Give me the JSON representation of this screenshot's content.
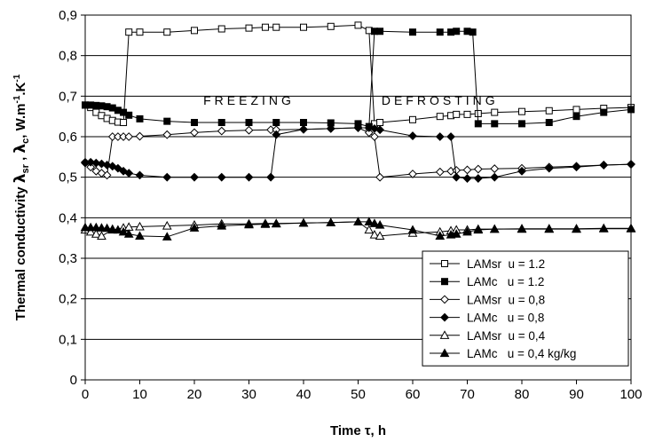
{
  "chart_data": {
    "type": "line",
    "title": "",
    "xlabel": "Time τ, h",
    "ylabel": "Thermal conductivity λsr , λc, W.m-1.K-1",
    "ylabel_parts": {
      "main": "Thermal conductivity ",
      "lambda1": "λ",
      "sub1": "sr",
      "sep": " , ",
      "lambda2": "λ",
      "sub2": "c",
      "unit_a": ", W.m",
      "sup1": "-1",
      "unit_b": ".K",
      "sup2": "-1"
    },
    "xlim": [
      0,
      100
    ],
    "ylim": [
      0,
      0.9
    ],
    "xticks": [
      0,
      10,
      20,
      30,
      40,
      50,
      60,
      70,
      80,
      90,
      100
    ],
    "yticks": [
      0,
      0.1,
      0.2,
      0.3,
      0.4,
      0.5,
      0.6,
      0.7,
      0.8,
      0.9
    ],
    "ytick_labels": [
      "0",
      "0,1",
      "0,2",
      "0,3",
      "0,4",
      "0,5",
      "0,6",
      "0,7",
      "0,8",
      "0,9"
    ],
    "grid": "horizontal",
    "legend_position": "bottom-right",
    "annotations": [
      {
        "text": "FREEZING",
        "x": 30,
        "y": 0.69
      },
      {
        "text": "DEFROSTING",
        "x": 65,
        "y": 0.69
      }
    ],
    "series": [
      {
        "name": "LAMsr  u = 1.2",
        "marker": "square-open",
        "points": [
          [
            0,
            0.678
          ],
          [
            1,
            0.672
          ],
          [
            2,
            0.66
          ],
          [
            3,
            0.652
          ],
          [
            4,
            0.645
          ],
          [
            5,
            0.64
          ],
          [
            6,
            0.636
          ],
          [
            7,
            0.635
          ],
          [
            8,
            0.858
          ],
          [
            10,
            0.858
          ],
          [
            15,
            0.858
          ],
          [
            20,
            0.862
          ],
          [
            25,
            0.866
          ],
          [
            30,
            0.868
          ],
          [
            33,
            0.87
          ],
          [
            35,
            0.87
          ],
          [
            40,
            0.87
          ],
          [
            45,
            0.872
          ],
          [
            50,
            0.875
          ],
          [
            52,
            0.862
          ],
          [
            53,
            0.632
          ],
          [
            54,
            0.635
          ],
          [
            60,
            0.642
          ],
          [
            65,
            0.65
          ],
          [
            67,
            0.652
          ],
          [
            68,
            0.655
          ],
          [
            70,
            0.655
          ],
          [
            72,
            0.657
          ],
          [
            75,
            0.66
          ],
          [
            80,
            0.662
          ],
          [
            85,
            0.664
          ],
          [
            90,
            0.667
          ],
          [
            95,
            0.67
          ],
          [
            100,
            0.672
          ]
        ]
      },
      {
        "name": "LAMc   u = 1.2",
        "marker": "square-filled",
        "points": [
          [
            0,
            0.678
          ],
          [
            1,
            0.678
          ],
          [
            2,
            0.677
          ],
          [
            3,
            0.676
          ],
          [
            4,
            0.674
          ],
          [
            5,
            0.671
          ],
          [
            6,
            0.665
          ],
          [
            7,
            0.66
          ],
          [
            8,
            0.653
          ],
          [
            10,
            0.644
          ],
          [
            15,
            0.638
          ],
          [
            20,
            0.635
          ],
          [
            25,
            0.635
          ],
          [
            30,
            0.635
          ],
          [
            35,
            0.635
          ],
          [
            40,
            0.635
          ],
          [
            45,
            0.634
          ],
          [
            50,
            0.632
          ],
          [
            52,
            0.625
          ],
          [
            53,
            0.86
          ],
          [
            54,
            0.86
          ],
          [
            60,
            0.858
          ],
          [
            65,
            0.858
          ],
          [
            67,
            0.858
          ],
          [
            68,
            0.86
          ],
          [
            70,
            0.86
          ],
          [
            71,
            0.858
          ],
          [
            72,
            0.632
          ],
          [
            75,
            0.632
          ],
          [
            80,
            0.632
          ],
          [
            85,
            0.635
          ],
          [
            90,
            0.65
          ],
          [
            95,
            0.66
          ],
          [
            100,
            0.667
          ]
        ]
      },
      {
        "name": "LAMsr  u = 0,8",
        "marker": "diamond-open",
        "points": [
          [
            0,
            0.535
          ],
          [
            1,
            0.525
          ],
          [
            2,
            0.515
          ],
          [
            3,
            0.51
          ],
          [
            4,
            0.505
          ],
          [
            5,
            0.6
          ],
          [
            6,
            0.6
          ],
          [
            7,
            0.6
          ],
          [
            8,
            0.6
          ],
          [
            10,
            0.601
          ],
          [
            15,
            0.605
          ],
          [
            20,
            0.61
          ],
          [
            25,
            0.614
          ],
          [
            30,
            0.616
          ],
          [
            34,
            0.617
          ],
          [
            35,
            0.617
          ],
          [
            40,
            0.618
          ],
          [
            45,
            0.62
          ],
          [
            50,
            0.622
          ],
          [
            52,
            0.61
          ],
          [
            53,
            0.6
          ],
          [
            54,
            0.5
          ],
          [
            60,
            0.508
          ],
          [
            65,
            0.513
          ],
          [
            67,
            0.515
          ],
          [
            68,
            0.517
          ],
          [
            70,
            0.518
          ],
          [
            72,
            0.52
          ],
          [
            75,
            0.521
          ],
          [
            80,
            0.522
          ],
          [
            85,
            0.525
          ],
          [
            90,
            0.527
          ],
          [
            95,
            0.53
          ],
          [
            100,
            0.532
          ]
        ]
      },
      {
        "name": "LAMc   u = 0,8",
        "marker": "diamond-filled",
        "points": [
          [
            0,
            0.537
          ],
          [
            1,
            0.537
          ],
          [
            2,
            0.535
          ],
          [
            3,
            0.533
          ],
          [
            4,
            0.53
          ],
          [
            5,
            0.527
          ],
          [
            6,
            0.522
          ],
          [
            7,
            0.515
          ],
          [
            8,
            0.51
          ],
          [
            10,
            0.505
          ],
          [
            15,
            0.5
          ],
          [
            20,
            0.5
          ],
          [
            25,
            0.5
          ],
          [
            30,
            0.5
          ],
          [
            34,
            0.5
          ],
          [
            35,
            0.605
          ],
          [
            40,
            0.618
          ],
          [
            45,
            0.62
          ],
          [
            50,
            0.622
          ],
          [
            52,
            0.622
          ],
          [
            53,
            0.62
          ],
          [
            54,
            0.617
          ],
          [
            60,
            0.602
          ],
          [
            65,
            0.6
          ],
          [
            67,
            0.6
          ],
          [
            68,
            0.5
          ],
          [
            70,
            0.497
          ],
          [
            72,
            0.497
          ],
          [
            75,
            0.5
          ],
          [
            80,
            0.515
          ],
          [
            85,
            0.522
          ],
          [
            90,
            0.525
          ],
          [
            95,
            0.53
          ],
          [
            100,
            0.532
          ]
        ]
      },
      {
        "name": "LAMsr  u = 0,4",
        "marker": "triangle-open",
        "points": [
          [
            0,
            0.37
          ],
          [
            1,
            0.365
          ],
          [
            2,
            0.36
          ],
          [
            3,
            0.355
          ],
          [
            5,
            0.37
          ],
          [
            7,
            0.375
          ],
          [
            8,
            0.377
          ],
          [
            10,
            0.378
          ],
          [
            15,
            0.38
          ],
          [
            20,
            0.382
          ],
          [
            25,
            0.385
          ],
          [
            30,
            0.385
          ],
          [
            33,
            0.386
          ],
          [
            35,
            0.386
          ],
          [
            40,
            0.387
          ],
          [
            45,
            0.388
          ],
          [
            50,
            0.39
          ],
          [
            52,
            0.37
          ],
          [
            53,
            0.358
          ],
          [
            54,
            0.355
          ],
          [
            60,
            0.362
          ],
          [
            65,
            0.365
          ],
          [
            67,
            0.368
          ],
          [
            68,
            0.37
          ],
          [
            70,
            0.37
          ],
          [
            72,
            0.372
          ],
          [
            75,
            0.372
          ],
          [
            80,
            0.372
          ],
          [
            85,
            0.372
          ],
          [
            90,
            0.372
          ],
          [
            95,
            0.373
          ],
          [
            100,
            0.373
          ]
        ]
      },
      {
        "name": "LAMc   u = 0,4 kg/kg",
        "marker": "triangle-filled",
        "points": [
          [
            0,
            0.376
          ],
          [
            1,
            0.376
          ],
          [
            2,
            0.376
          ],
          [
            3,
            0.375
          ],
          [
            4,
            0.374
          ],
          [
            5,
            0.372
          ],
          [
            6,
            0.37
          ],
          [
            7,
            0.365
          ],
          [
            8,
            0.36
          ],
          [
            10,
            0.355
          ],
          [
            15,
            0.353
          ],
          [
            20,
            0.375
          ],
          [
            25,
            0.38
          ],
          [
            30,
            0.383
          ],
          [
            33,
            0.384
          ],
          [
            35,
            0.385
          ],
          [
            40,
            0.387
          ],
          [
            45,
            0.388
          ],
          [
            50,
            0.39
          ],
          [
            52,
            0.39
          ],
          [
            53,
            0.386
          ],
          [
            54,
            0.382
          ],
          [
            60,
            0.37
          ],
          [
            65,
            0.355
          ],
          [
            67,
            0.358
          ],
          [
            68,
            0.36
          ],
          [
            70,
            0.365
          ],
          [
            72,
            0.37
          ],
          [
            75,
            0.372
          ],
          [
            80,
            0.373
          ],
          [
            85,
            0.373
          ],
          [
            90,
            0.373
          ],
          [
            95,
            0.374
          ],
          [
            100,
            0.374
          ]
        ]
      }
    ]
  }
}
